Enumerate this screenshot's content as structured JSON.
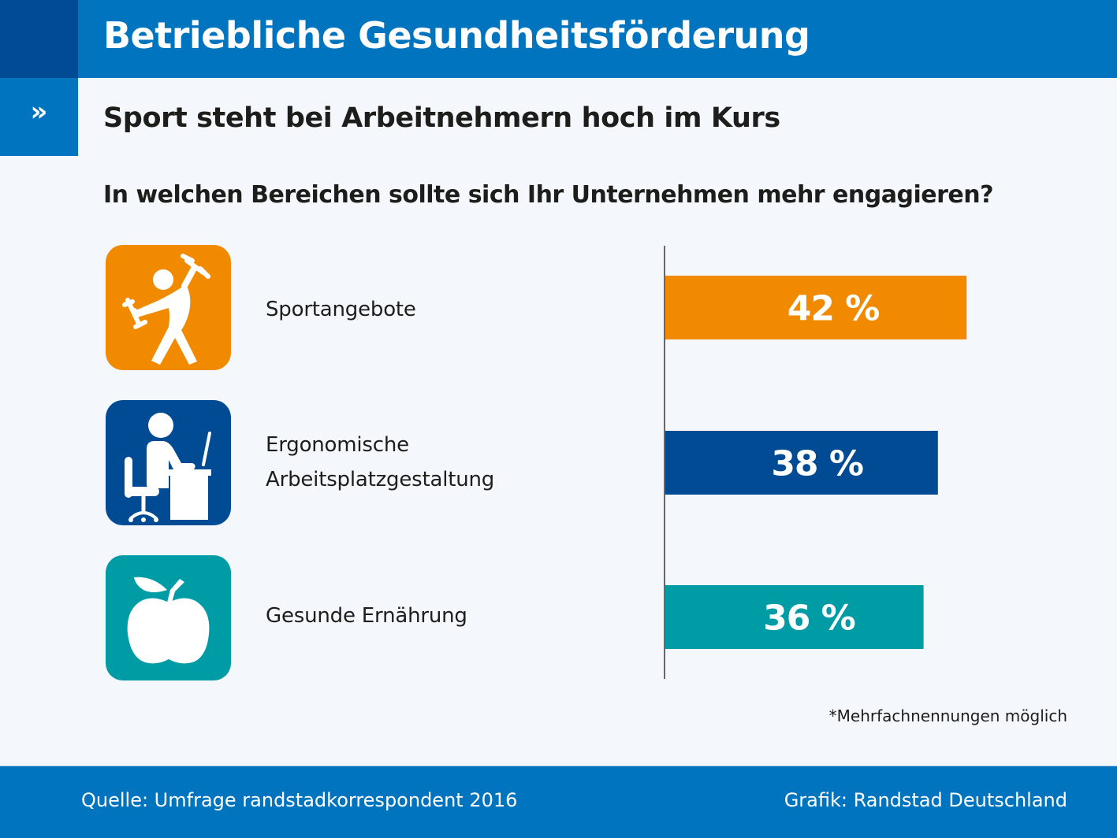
{
  "header": {
    "title": "Betriebliche Gesundheitsförderung",
    "arrow_glyph": "»",
    "subtitle": "Sport steht bei Arbeitnehmern hoch im Kurs"
  },
  "question": "In welchen Bereichen sollte sich Ihr Unternehmen mehr engagieren?",
  "items": [
    {
      "label": "Sportangebote",
      "icon": "dumbbell-exercise-icon",
      "color": "#f28a00"
    },
    {
      "label": "Ergonomische\nArbeitsplatzgestaltung",
      "icon": "desk-worker-icon",
      "color": "#004b93"
    },
    {
      "label": "Gesunde Ernährung",
      "icon": "apple-icon",
      "color": "#009ca5"
    }
  ],
  "note": "*Mehrfachnennungen möglich",
  "footer": {
    "source": "Quelle: Umfrage randstadkorrespondent 2016",
    "credit": "Grafik: Randstad Deutschland"
  },
  "chart_data": {
    "type": "bar",
    "orientation": "horizontal",
    "title": "In welchen Bereichen sollte sich Ihr Unternehmen mehr engagieren?",
    "categories": [
      "Sportangebote",
      "Ergonomische Arbeitsplatzgestaltung",
      "Gesunde Ernährung"
    ],
    "values": [
      42,
      38,
      36
    ],
    "value_labels": [
      "42 %",
      "38 %",
      "36 %"
    ],
    "unit": "%",
    "colors": [
      "#f28a00",
      "#004b93",
      "#009ca5"
    ],
    "xlim": [
      0,
      100
    ],
    "grid": false,
    "legend": "none",
    "xlabel": "",
    "ylabel": ""
  }
}
